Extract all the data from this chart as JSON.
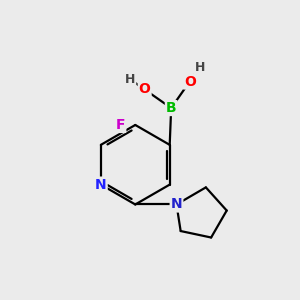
{
  "bg_color": "#ebebeb",
  "bond_color": "#000000",
  "atom_colors": {
    "B": "#00bb00",
    "O": "#ff0000",
    "N_pyridine": "#2222ff",
    "N_pyrrolidine": "#2222cc",
    "F": "#cc00cc",
    "H": "#444444",
    "C": "#000000"
  },
  "figsize": [
    3.0,
    3.0
  ],
  "dpi": 100
}
